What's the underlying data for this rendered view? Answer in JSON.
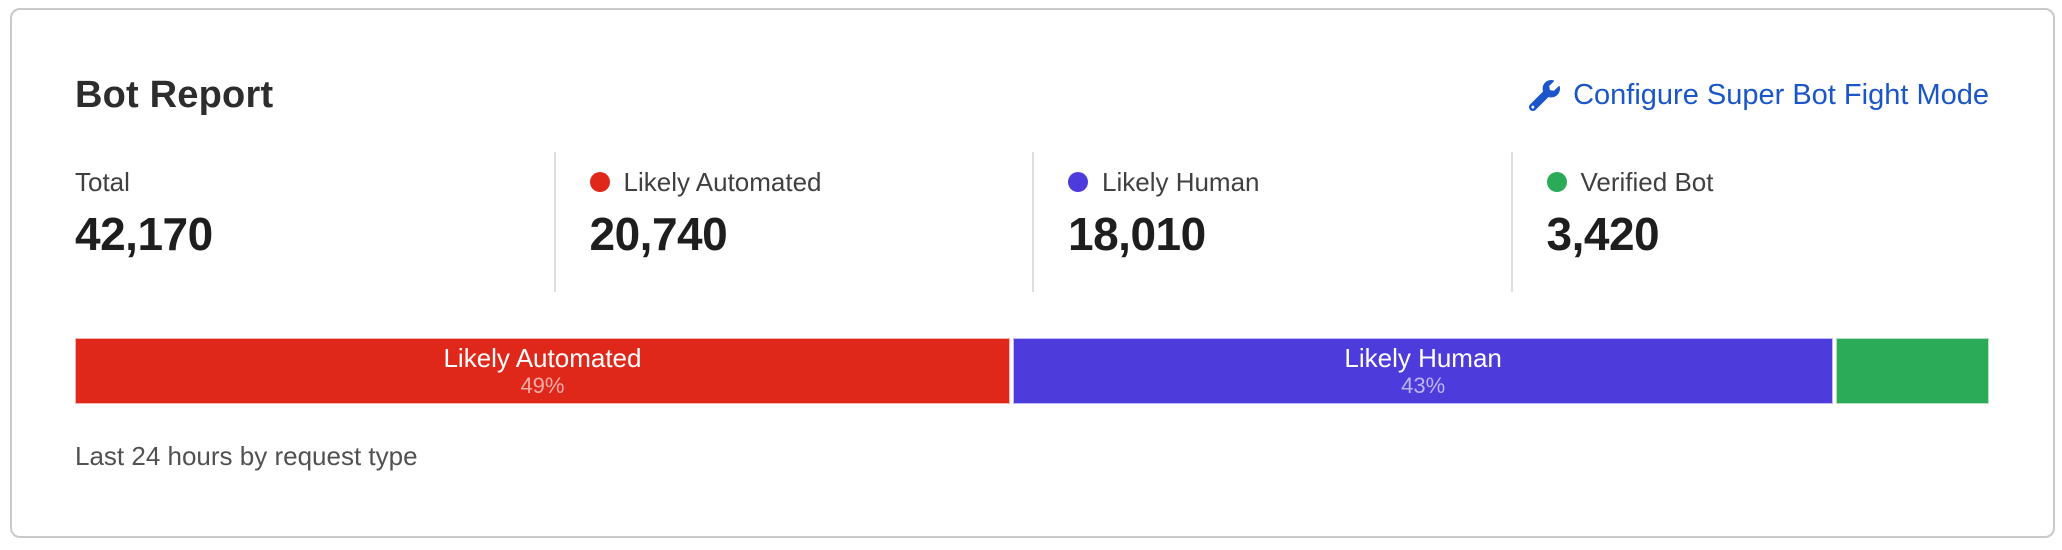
{
  "card": {
    "title": "Bot Report",
    "action": {
      "label": "Configure Super Bot Fight Mode",
      "icon": "wrench-icon",
      "color": "#1a56c9"
    },
    "stats": [
      {
        "label": "Total",
        "value": "42,170",
        "dot_color": null
      },
      {
        "label": "Likely Automated",
        "value": "20,740",
        "dot_color": "#e0281a"
      },
      {
        "label": "Likely Human",
        "value": "18,010",
        "dot_color": "#4d3bdb"
      },
      {
        "label": "Verified Bot",
        "value": "3,420",
        "dot_color": "#2bab57"
      }
    ],
    "footer": "Last 24 hours by request type"
  },
  "chart_data": {
    "type": "bar",
    "orientation": "horizontal-stacked",
    "title": "Bot Report",
    "subtitle": "Last 24 hours by request type",
    "total": 42170,
    "unit": "requests",
    "segments": [
      {
        "label": "Likely Automated",
        "value": 20740,
        "percent": 49,
        "percent_label": "49%",
        "color": "#e0281a",
        "text_visible": true
      },
      {
        "label": "Likely Human",
        "value": 18010,
        "percent": 43,
        "percent_label": "43%",
        "color": "#4d3bdb",
        "text_visible": true
      },
      {
        "label": "",
        "value": 3420,
        "percent": 8,
        "percent_label": "",
        "color": "#2bab57",
        "text_visible": false
      }
    ]
  },
  "colors": {
    "card_border": "#c9c9c9",
    "divider": "#dedede",
    "title_text": "#2d2d2d",
    "value_text": "#1e1e1e",
    "label_text": "#404040",
    "footer_text": "#515151",
    "link_blue": "#1a56c9"
  }
}
